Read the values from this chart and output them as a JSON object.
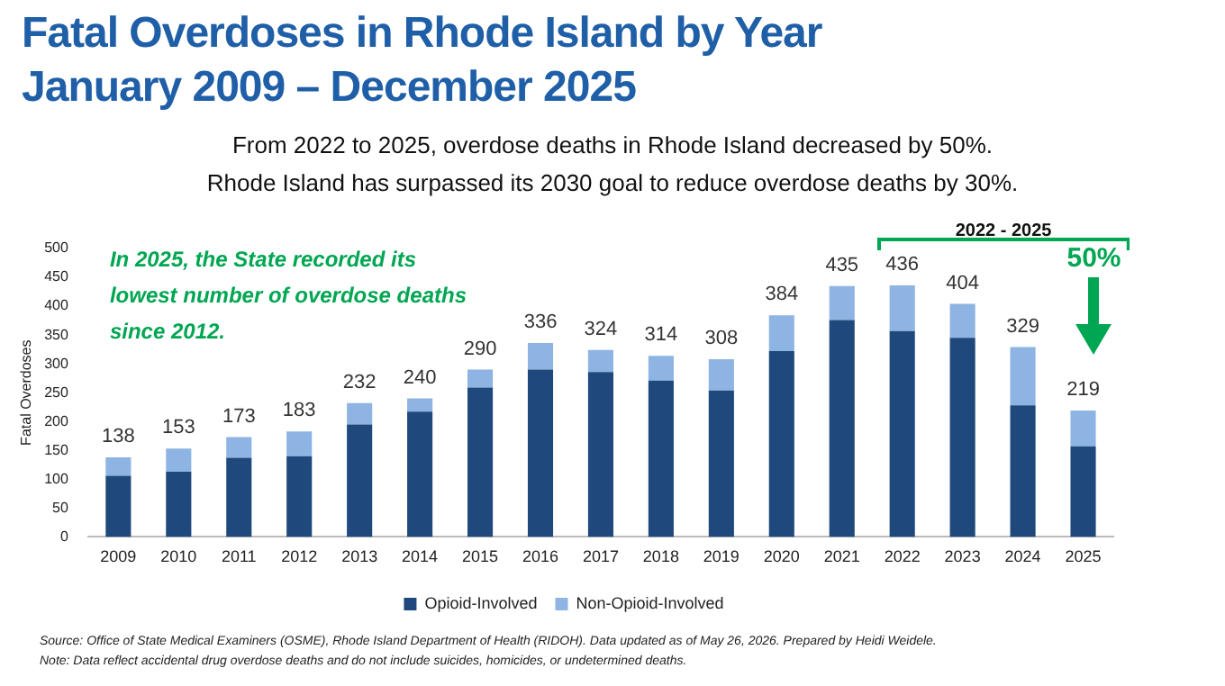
{
  "chart_data": {
    "type": "bar",
    "stacked": true,
    "title": "Fatal Overdoses in Rhode Island by Year\nJanuary 2009 – December 2025",
    "subtitle": "From 2022 to 2025, overdose deaths in Rhode Island decreased by 50%.\nRhode Island has surpassed its 2030 goal to reduce overdose deaths by 30%.",
    "ylabel": "Fatal Overdoses",
    "categories": [
      "2009",
      "2010",
      "2011",
      "2012",
      "2013",
      "2014",
      "2015",
      "2016",
      "2017",
      "2018",
      "2019",
      "2020",
      "2021",
      "2022",
      "2023",
      "2024",
      "2025"
    ],
    "series": [
      {
        "name": "Opioid-Involved",
        "color": "#1f497d",
        "values": [
          106,
          113,
          137,
          140,
          195,
          217,
          259,
          290,
          286,
          271,
          254,
          322,
          376,
          357,
          345,
          228,
          157
        ]
      },
      {
        "name": "Non-Opioid-Involved",
        "color": "#8db4e2",
        "values": [
          32,
          40,
          36,
          43,
          37,
          23,
          31,
          46,
          38,
          43,
          54,
          62,
          59,
          79,
          59,
          101,
          62
        ]
      }
    ],
    "totals": [
      "138",
      "153",
      "173",
      "183",
      "232",
      "240",
      "290",
      "336",
      "324",
      "314",
      "308",
      "384",
      "435",
      "436",
      "404",
      "329",
      "219"
    ],
    "ylim": [
      0,
      500
    ],
    "yticks": [
      0,
      50,
      100,
      150,
      200,
      250,
      300,
      350,
      400,
      450,
      500
    ],
    "grid": false,
    "legend": "bottom",
    "annotations": [
      "In 2025, the State recorded its lowest number of overdose deaths since 2012.",
      "2022 - 2025",
      "50%",
      "Source: Office of State Medical Examiners (OSME), Rhode Island Department of Health (RIDOH). Data updated as of May 26, 2026. Prepared by Heidi Weidele.",
      "Note: Data reflect accidental drug overdose deaths and do not include suicides, homicides, or undetermined deaths."
    ]
  }
}
